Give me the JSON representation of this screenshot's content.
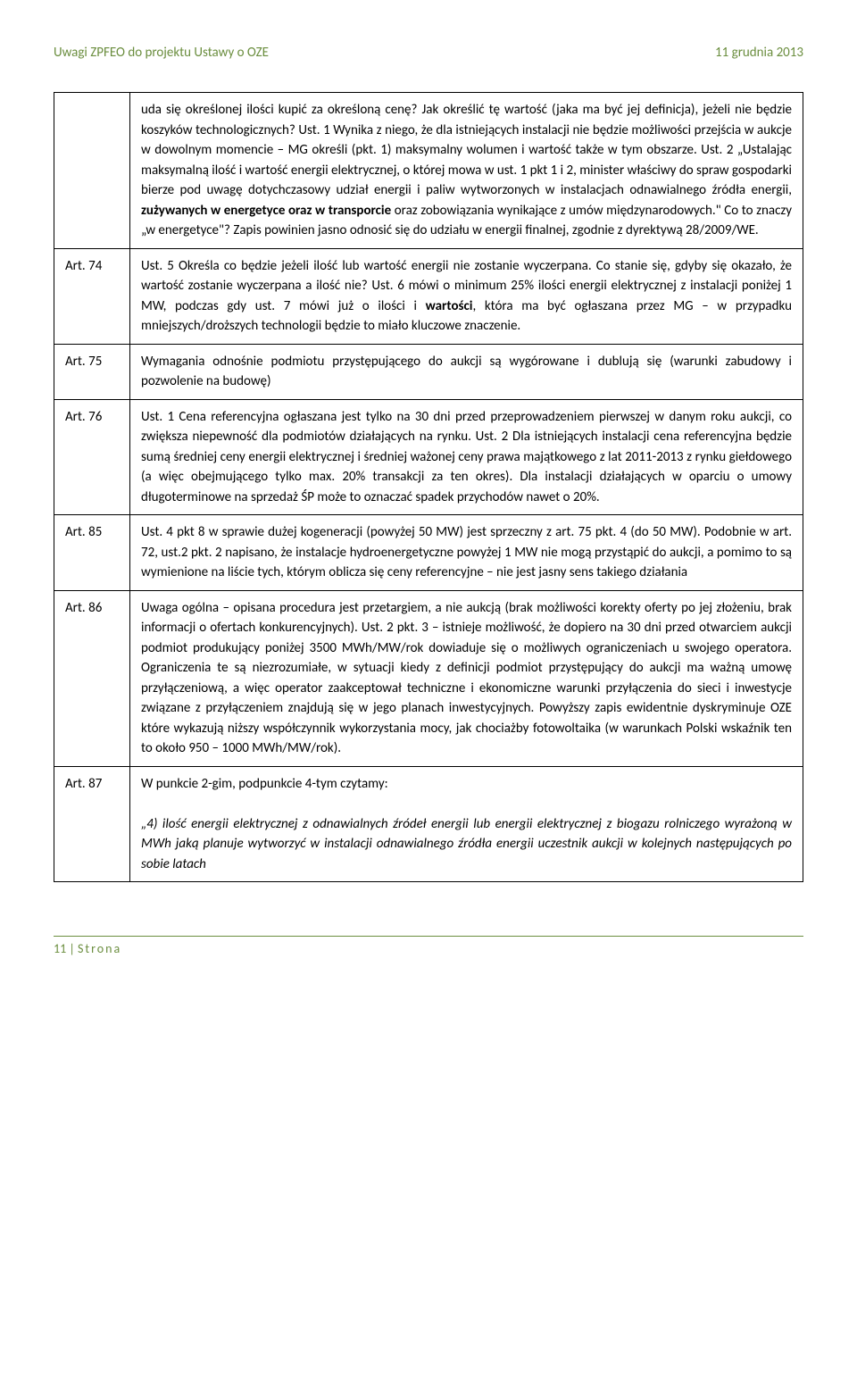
{
  "header": {
    "left": "Uwagi ZPFEO do projektu Ustawy o OZE",
    "right": "11 grudnia 2013"
  },
  "rows": [
    {
      "label": "",
      "content": "uda się określonej ilości kupić za określoną cenę? Jak określić tę wartość (jaka ma być jej definicja), jeżeli nie będzie koszyków technologicznych? Ust. 1 Wynika z niego, że dla istniejących instalacji nie będzie możliwości przejścia w aukcje w dowolnym momencie – MG określi (pkt. 1) maksymalny wolumen i wartość także w tym obszarze. Ust. 2 „Ustalając maksymalną ilość i wartość energii elektrycznej, o której mowa w ust. 1 pkt 1 i 2, minister właściwy do spraw gospodarki bierze pod uwagę dotychczasowy udział energii i paliw wytworzonych w instalacjach odnawialnego źródła energii, <b>zużywanych w energetyce oraz w transporcie</b> oraz zobowiązania wynikające z umów międzynarodowych.\" Co to znaczy „w energetyce\"? Zapis powinien jasno odnosić się do udziału w energii finalnej, zgodnie z dyrektywą 28/2009/WE."
    },
    {
      "label": "Art. 74",
      "content": "Ust. 5 Określa co będzie jeżeli ilość lub wartość energii nie zostanie wyczerpana. Co stanie się, gdyby się okazało, że wartość zostanie wyczerpana a ilość nie? Ust. 6 mówi o minimum 25% ilości energii elektrycznej z instalacji poniżej 1 MW, podczas gdy ust. 7 mówi już o ilości i <b>wartości</b>, która ma być ogłaszana przez MG – w przypadku mniejszych/droższych technologii będzie to miało kluczowe znaczenie."
    },
    {
      "label": "Art. 75",
      "content": "Wymagania odnośnie podmiotu przystępującego do aukcji są wygórowane i dublują się (warunki zabudowy i pozwolenie na budowę)"
    },
    {
      "label": "Art. 76",
      "content": "Ust. 1 Cena referencyjna ogłaszana jest tylko na 30 dni przed przeprowadzeniem pierwszej w danym roku aukcji, co zwiększa niepewność dla podmiotów działających na rynku. Ust. 2 Dla istniejących instalacji cena referencyjna będzie sumą średniej ceny energii elektrycznej i średniej ważonej ceny prawa majątkowego z lat 2011-2013 z rynku giełdowego (a więc obejmującego tylko max. 20% transakcji za ten okres). Dla instalacji działających w oparciu o umowy długoterminowe na sprzedaż ŚP może to oznaczać spadek przychodów nawet o 20%."
    },
    {
      "label": "Art. 85",
      "content": "Ust. 4 pkt 8 w sprawie dużej kogeneracji (powyżej 50 MW) jest sprzeczny z art. 75 pkt. 4 (do 50 MW). Podobnie w art. 72, ust.2 pkt. 2 napisano, że instalacje hydroenergetyczne powyżej 1 MW nie mogą przystąpić do aukcji, a pomimo to są wymienione na liście tych, którym oblicza się ceny referencyjne – nie jest jasny sens takiego działania"
    },
    {
      "label": "Art. 86",
      "content": "Uwaga ogólna – opisana procedura jest przetargiem, a nie aukcją (brak możliwości korekty oferty po jej złożeniu, brak informacji o ofertach konkurencyjnych). Ust. 2 pkt. 3 – istnieje możliwość, że dopiero na 30 dni przed otwarciem aukcji podmiot produkujący poniżej 3500 MWh/MW/rok dowiaduje się o możliwych ograniczeniach u swojego operatora. Ograniczenia te są niezrozumiałe, w sytuacji kiedy z definicji podmiot przystępujący do aukcji ma ważną umowę przyłączeniową, a więc operator zaakceptował techniczne i ekonomiczne warunki przyłączenia do sieci i inwestycje związane z przyłączeniem znajdują się w jego planach inwestycyjnych. Powyższy zapis ewidentnie dyskryminuje OZE które wykazują niższy współczynnik wykorzystania mocy, jak chociażby fotowoltaika (w warunkach Polski wskaźnik ten to około 950 – 1000 MWh/MW/rok)."
    },
    {
      "label": "Art. 87",
      "content": "W punkcie 2-gim, podpunkcie 4-tym czytamy:<br><br><span class=\"italic\">„4) ilość energii elektrycznej z odnawialnych źródeł energii lub energii elektrycznej z biogazu rolniczego wyrażoną w MWh jaką planuje wytworzyć w instalacji odnawialnego źródła energii uczestnik aukcji w kolejnych następujących po sobie latach</span>"
    }
  ],
  "footer": {
    "page": "11",
    "separator": " | ",
    "label": "Strona"
  },
  "colors": {
    "header_text": "#6b8e3f",
    "body_text": "#000000",
    "border": "#000000",
    "background": "#ffffff"
  },
  "typography": {
    "body_fontsize": 15,
    "header_fontsize": 15,
    "footer_fontsize": 14,
    "font_family": "Calibri, Arial, sans-serif"
  }
}
